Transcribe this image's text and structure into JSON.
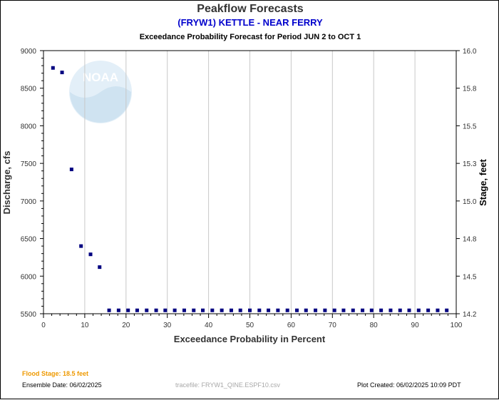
{
  "header": {
    "title": "Peakflow Forecasts",
    "subtitle": "(FRYW1) KETTLE - NEAR FERRY",
    "period": "Exceedance Probability Forecast for Period JUN 2 to OCT 1"
  },
  "footer": {
    "flood_stage": "Flood Stage: 18.5 feet",
    "ensemble_date": "Ensemble Date: 06/02/2025",
    "tracefile": "tracefile: FRYW1_QINE.ESPF10.csv",
    "plot_created": "Plot Created: 06/02/2025 10:09 PDT"
  },
  "watermark": {
    "text": "NOAA",
    "icon": "noaa-logo-icon"
  },
  "colors": {
    "subtitle": "#0000cc",
    "flood_stage": "#ee9900",
    "markers": "#000080",
    "grid": "#c8c8c8",
    "watermark": "#dcecf6"
  },
  "chart_data": {
    "type": "scatter",
    "title": "Peakflow Forecasts",
    "subtitle": "(FRYW1) KETTLE - NEAR FERRY",
    "xlabel": "Exceedance Probability in Percent",
    "ylabel": "Discharge, cfs",
    "y2label": "Stage, feet",
    "xlim": [
      0,
      100
    ],
    "ylim": [
      5500,
      9000
    ],
    "y2lim": [
      14.2,
      16.0
    ],
    "x_ticks": [
      "0",
      "10",
      "20",
      "30",
      "40",
      "50",
      "60",
      "70",
      "80",
      "90",
      "100"
    ],
    "y_ticks": [
      "5500",
      "6000",
      "6500",
      "7000",
      "7500",
      "8000",
      "8500",
      "9000"
    ],
    "y2_ticks": [
      "14.2",
      "14.5",
      "14.8",
      "15.0",
      "15.3",
      "15.5",
      "15.8",
      "16.0"
    ],
    "grid": "vertical",
    "series": [
      {
        "x": [
          2.3,
          4.5,
          6.8,
          9.1,
          11.4,
          13.6,
          15.9,
          18.2,
          20.5,
          22.7,
          25.0,
          27.3,
          29.5,
          31.8,
          34.1,
          36.4,
          38.6,
          40.9,
          43.2,
          45.5,
          47.7,
          50.0,
          52.3,
          54.5,
          56.8,
          59.1,
          61.4,
          63.6,
          65.9,
          68.2,
          70.5,
          72.7,
          75.0,
          77.3,
          79.5,
          81.8,
          84.1,
          86.4,
          88.6,
          90.9,
          93.2,
          95.5,
          97.7
        ],
        "y": [
          8770,
          8710,
          7420,
          6400,
          6290,
          6120,
          5545,
          5545,
          5545,
          5545,
          5545,
          5545,
          5545,
          5545,
          5545,
          5545,
          5545,
          5545,
          5545,
          5545,
          5545,
          5545,
          5545,
          5545,
          5545,
          5545,
          5545,
          5545,
          5545,
          5545,
          5545,
          5545,
          5545,
          5545,
          5545,
          5545,
          5545,
          5545,
          5545,
          5545,
          5545,
          5545,
          5545
        ]
      }
    ]
  }
}
